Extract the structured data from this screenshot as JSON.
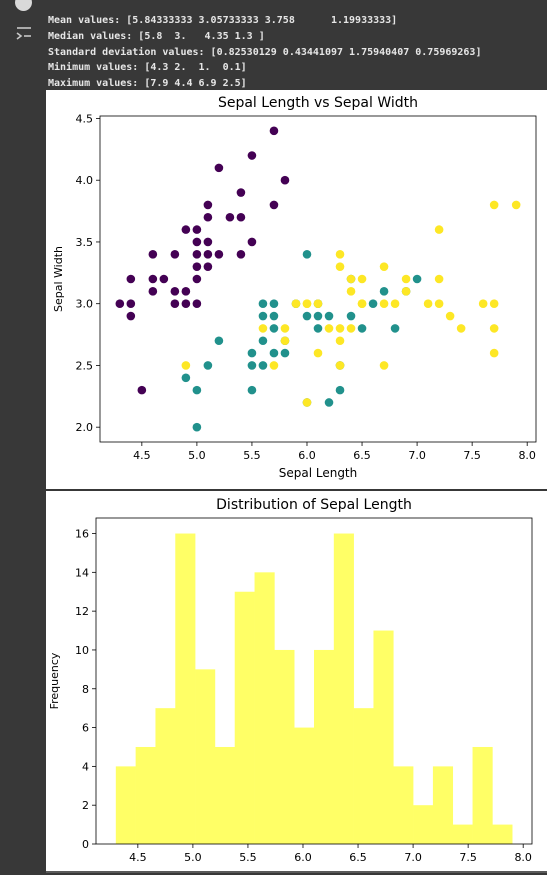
{
  "output_lines": [
    "Mean values: [5.84333333 3.05733333 3.758      1.19933333]",
    "Median values: [5.8  3.   4.35 1.3 ]",
    "Standard deviation values: [0.82530129 0.43441097 1.75940407 0.75969263]",
    "Minimum values: [4.3 2.  1.  0.1]",
    "Maximum values: [7.9 4.4 6.9 2.5]"
  ],
  "icons": {
    "run": "run-indicator-icon",
    "output": "output-toggle-icon"
  },
  "chart_data": [
    {
      "type": "scatter",
      "title": "Sepal Length vs Sepal Width",
      "xlabel": "Sepal Length",
      "ylabel": "Sepal Width",
      "xlim": [
        4.12,
        8.08
      ],
      "ylim": [
        1.88,
        4.52
      ],
      "xticks": [
        "4.5",
        "5.0",
        "5.5",
        "6.0",
        "6.5",
        "7.0",
        "7.5",
        "8.0"
      ],
      "yticks": [
        "2.0",
        "2.5",
        "3.0",
        "3.5",
        "4.0",
        "4.5"
      ],
      "series": [
        {
          "color": "#440154",
          "x": [
            4.3,
            4.4,
            4.4,
            4.4,
            4.5,
            4.6,
            4.6,
            4.6,
            4.7,
            4.8,
            4.8,
            4.8,
            4.9,
            4.9,
            4.9,
            5.0,
            5.0,
            5.0,
            5.0,
            5.0,
            5.0,
            5.1,
            5.1,
            5.1,
            5.1,
            5.1,
            5.2,
            5.2,
            5.3,
            5.4,
            5.4,
            5.4,
            5.5,
            5.5,
            5.7,
            5.7,
            5.8
          ],
          "y": [
            3.0,
            2.9,
            3.0,
            3.2,
            2.3,
            3.1,
            3.2,
            3.4,
            3.2,
            3.0,
            3.1,
            3.4,
            3.0,
            3.1,
            3.6,
            3.0,
            3.2,
            3.3,
            3.4,
            3.5,
            3.6,
            3.3,
            3.5,
            3.7,
            3.8,
            3.4,
            3.4,
            4.1,
            3.7,
            3.4,
            3.7,
            3.9,
            3.5,
            4.2,
            3.8,
            4.4,
            4.0
          ]
        },
        {
          "color": "#21918c",
          "x": [
            4.9,
            5.0,
            5.0,
            5.1,
            5.2,
            5.5,
            5.5,
            5.5,
            5.6,
            5.6,
            5.6,
            5.6,
            5.7,
            5.7,
            5.7,
            5.7,
            5.8,
            5.8,
            5.9,
            6.0,
            6.0,
            6.0,
            6.1,
            6.1,
            6.1,
            6.2,
            6.2,
            6.3,
            6.3,
            6.4,
            6.4,
            6.5,
            6.6,
            6.7,
            6.8,
            6.9,
            7.0
          ],
          "y": [
            2.4,
            2.0,
            2.3,
            2.5,
            2.7,
            2.3,
            2.5,
            2.6,
            2.5,
            2.7,
            2.9,
            3.0,
            2.6,
            2.8,
            2.9,
            3.0,
            2.7,
            2.6,
            3.0,
            2.9,
            3.4,
            2.2,
            2.8,
            2.9,
            3.0,
            2.2,
            2.9,
            2.3,
            2.5,
            2.9,
            3.2,
            2.8,
            3.0,
            3.1,
            2.8,
            3.1,
            3.2
          ]
        },
        {
          "color": "#fde725",
          "x": [
            4.9,
            5.6,
            5.7,
            5.8,
            5.8,
            5.9,
            6.0,
            6.0,
            6.0,
            6.1,
            6.1,
            6.2,
            6.3,
            6.3,
            6.3,
            6.3,
            6.3,
            6.4,
            6.4,
            6.4,
            6.5,
            6.5,
            6.5,
            6.7,
            6.7,
            6.7,
            6.8,
            6.9,
            6.9,
            7.1,
            7.2,
            7.2,
            7.2,
            7.3,
            7.4,
            7.6,
            7.7,
            7.7,
            7.7,
            7.7,
            7.9
          ],
          "y": [
            2.5,
            2.8,
            2.5,
            2.7,
            2.8,
            3.0,
            2.2,
            3.0,
            3.0,
            2.6,
            3.0,
            2.8,
            2.5,
            2.7,
            2.8,
            3.3,
            3.4,
            2.8,
            3.1,
            3.2,
            3.0,
            3.2,
            3.0,
            2.5,
            3.0,
            3.3,
            3.0,
            3.1,
            3.2,
            3.0,
            3.0,
            3.2,
            3.6,
            2.9,
            2.8,
            3.0,
            2.6,
            2.8,
            3.0,
            3.8,
            3.8
          ]
        }
      ]
    },
    {
      "type": "bar",
      "title": "Distribution of Sepal Length",
      "xlabel": "",
      "ylabel": "Frequency",
      "bar_color": "#ffff66",
      "xlim": [
        4.12,
        8.08
      ],
      "ylim": [
        0,
        16.8
      ],
      "bin_start": 4.3,
      "bin_width": 0.18,
      "values": [
        4,
        5,
        7,
        16,
        9,
        5,
        13,
        14,
        10,
        6,
        10,
        16,
        7,
        11,
        4,
        2,
        4,
        1,
        5,
        1
      ],
      "xticks": [
        "4.5",
        "5.0",
        "5.5",
        "6.0",
        "6.5",
        "7.0",
        "7.5",
        "8.0"
      ],
      "yticks": [
        "0",
        "2",
        "4",
        "6",
        "8",
        "10",
        "12",
        "14",
        "16"
      ]
    }
  ]
}
